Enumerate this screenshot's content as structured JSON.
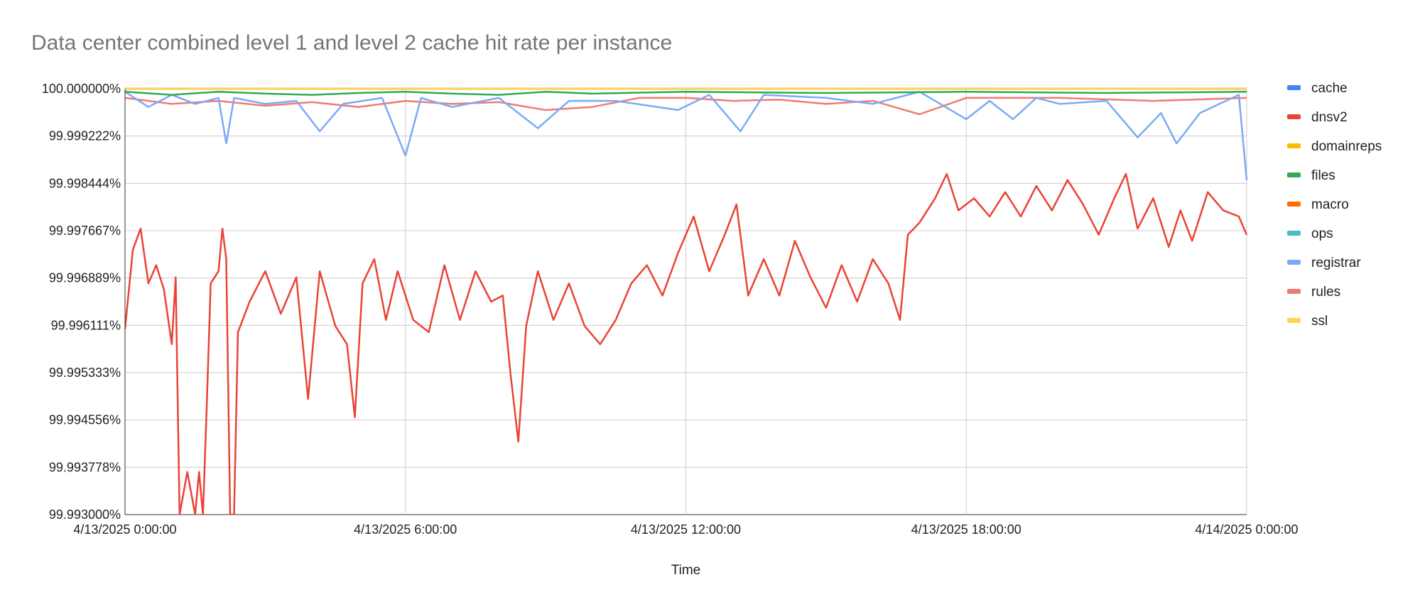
{
  "chart_data": {
    "type": "line",
    "title": "Data center combined level 1 and level 2 cache hit rate per instance",
    "xlabel": "Time",
    "ylabel": "",
    "x_range": [
      "4/13/2025 0:00:00",
      "4/14/2025 0:00:00"
    ],
    "x_ticks": [
      "4/13/2025 0:00:00",
      "4/13/2025 6:00:00",
      "4/13/2025 12:00:00",
      "4/13/2025 18:00:00",
      "4/14/2025 0:00:00"
    ],
    "y_ticks": [
      "100.000000%",
      "99.999222%",
      "99.998444%",
      "99.997667%",
      "99.996889%",
      "99.996111%",
      "99.995333%",
      "99.994556%",
      "99.993778%",
      "99.993000%"
    ],
    "ylim": [
      99.993,
      100.0
    ],
    "grid": true,
    "legend_position": "right",
    "series": [
      {
        "name": "cache",
        "color": "#4285F4",
        "points": [
          [
            "4/13/2025 0:00",
            100.0
          ],
          [
            "4/14/2025 0:00",
            100.0
          ]
        ]
      },
      {
        "name": "dnsv2",
        "color": "#EA4335",
        "points": [
          [
            "4/13/2025 0:00",
            99.99605
          ],
          [
            "4/13/2025 0:10",
            99.99735
          ],
          [
            "4/13/2025 0:20",
            99.9977
          ],
          [
            "4/13/2025 0:30",
            99.9968
          ],
          [
            "4/13/2025 0:40",
            99.9971
          ],
          [
            "4/13/2025 0:50",
            99.9967
          ],
          [
            "4/13/2025 1:00",
            99.9958
          ],
          [
            "4/13/2025 1:05",
            99.9969
          ],
          [
            "4/13/2025 1:10",
            99.993
          ],
          [
            "4/13/2025 1:20",
            99.9937
          ],
          [
            "4/13/2025 1:30",
            99.993
          ],
          [
            "4/13/2025 1:35",
            99.9937
          ],
          [
            "4/13/2025 1:40",
            99.993
          ],
          [
            "4/13/2025 1:45",
            99.9948
          ],
          [
            "4/13/2025 1:50",
            99.9968
          ],
          [
            "4/13/2025 2:00",
            99.997
          ],
          [
            "4/13/2025 2:05",
            99.9977
          ],
          [
            "4/13/2025 2:10",
            99.9972
          ],
          [
            "4/13/2025 2:15",
            99.993
          ],
          [
            "4/13/2025 2:20",
            99.993
          ],
          [
            "4/13/2025 2:25",
            99.996
          ],
          [
            "4/13/2025 2:40",
            99.9965
          ],
          [
            "4/13/2025 3:00",
            99.997
          ],
          [
            "4/13/2025 3:20",
            99.9963
          ],
          [
            "4/13/2025 3:40",
            99.9969
          ],
          [
            "4/13/2025 3:55",
            99.9949
          ],
          [
            "4/13/2025 4:10",
            99.997
          ],
          [
            "4/13/2025 4:30",
            99.9961
          ],
          [
            "4/13/2025 4:45",
            99.9958
          ],
          [
            "4/13/2025 4:55",
            99.9946
          ],
          [
            "4/13/2025 5:05",
            99.9968
          ],
          [
            "4/13/2025 5:20",
            99.9972
          ],
          [
            "4/13/2025 5:35",
            99.9962
          ],
          [
            "4/13/2025 5:50",
            99.997
          ],
          [
            "4/13/2025 6:10",
            99.9962
          ],
          [
            "4/13/2025 6:30",
            99.996
          ],
          [
            "4/13/2025 6:50",
            99.9971
          ],
          [
            "4/13/2025 7:10",
            99.9962
          ],
          [
            "4/13/2025 7:30",
            99.997
          ],
          [
            "4/13/2025 7:50",
            99.9965
          ],
          [
            "4/13/2025 8:05",
            99.9966
          ],
          [
            "4/13/2025 8:15",
            99.9953
          ],
          [
            "4/13/2025 8:25",
            99.9942
          ],
          [
            "4/13/2025 8:35",
            99.9961
          ],
          [
            "4/13/2025 8:50",
            99.997
          ],
          [
            "4/13/2025 9:10",
            99.9962
          ],
          [
            "4/13/2025 9:30",
            99.9968
          ],
          [
            "4/13/2025 9:50",
            99.9961
          ],
          [
            "4/13/2025 10:10",
            99.9958
          ],
          [
            "4/13/2025 10:30",
            99.9962
          ],
          [
            "4/13/2025 10:50",
            99.9968
          ],
          [
            "4/13/2025 11:10",
            99.9971
          ],
          [
            "4/13/2025 11:30",
            99.9966
          ],
          [
            "4/13/2025 11:50",
            99.9973
          ],
          [
            "4/13/2025 12:10",
            99.9979
          ],
          [
            "4/13/2025 12:30",
            99.997
          ],
          [
            "4/13/2025 12:50",
            99.9976
          ],
          [
            "4/13/2025 13:05",
            99.9981
          ],
          [
            "4/13/2025 13:20",
            99.9966
          ],
          [
            "4/13/2025 13:40",
            99.9972
          ],
          [
            "4/13/2025 14:00",
            99.9966
          ],
          [
            "4/13/2025 14:20",
            99.9975
          ],
          [
            "4/13/2025 14:40",
            99.9969
          ],
          [
            "4/13/2025 15:00",
            99.9964
          ],
          [
            "4/13/2025 15:20",
            99.9971
          ],
          [
            "4/13/2025 15:40",
            99.9965
          ],
          [
            "4/13/2025 16:00",
            99.9972
          ],
          [
            "4/13/2025 16:20",
            99.9968
          ],
          [
            "4/13/2025 16:35",
            99.9962
          ],
          [
            "4/13/2025 16:45",
            99.9976
          ],
          [
            "4/13/2025 17:00",
            99.9978
          ],
          [
            "4/13/2025 17:20",
            99.9982
          ],
          [
            "4/13/2025 17:35",
            99.9986
          ],
          [
            "4/13/2025 17:50",
            99.998
          ],
          [
            "4/13/2025 18:10",
            99.9982
          ],
          [
            "4/13/2025 18:30",
            99.9979
          ],
          [
            "4/13/2025 18:50",
            99.9983
          ],
          [
            "4/13/2025 19:10",
            99.9979
          ],
          [
            "4/13/2025 19:30",
            99.9984
          ],
          [
            "4/13/2025 19:50",
            99.998
          ],
          [
            "4/13/2025 20:10",
            99.9985
          ],
          [
            "4/13/2025 20:30",
            99.9981
          ],
          [
            "4/13/2025 20:50",
            99.9976
          ],
          [
            "4/13/2025 21:10",
            99.9982
          ],
          [
            "4/13/2025 21:25",
            99.9986
          ],
          [
            "4/13/2025 21:40",
            99.9977
          ],
          [
            "4/13/2025 22:00",
            99.9982
          ],
          [
            "4/13/2025 22:20",
            99.9974
          ],
          [
            "4/13/2025 22:35",
            99.998
          ],
          [
            "4/13/2025 22:50",
            99.9975
          ],
          [
            "4/13/2025 23:10",
            99.9983
          ],
          [
            "4/13/2025 23:30",
            99.998
          ],
          [
            "4/13/2025 23:50",
            99.9979
          ],
          [
            "4/14/2025 0:00",
            99.9976
          ]
        ]
      },
      {
        "name": "domainreps",
        "color": "#FBBC04",
        "points": [
          [
            "4/13/2025 0:00",
            100.0
          ],
          [
            "4/14/2025 0:00",
            100.0
          ]
        ]
      },
      {
        "name": "files",
        "color": "#34A853",
        "points": [
          [
            "4/13/2025 0:00",
            99.99995
          ],
          [
            "4/13/2025 1:00",
            99.9999
          ],
          [
            "4/13/2025 2:00",
            99.99995
          ],
          [
            "4/13/2025 3:00",
            99.99992
          ],
          [
            "4/13/2025 4:00",
            99.9999
          ],
          [
            "4/13/2025 5:00",
            99.99993
          ],
          [
            "4/13/2025 6:00",
            99.99995
          ],
          [
            "4/13/2025 7:00",
            99.99992
          ],
          [
            "4/13/2025 8:00",
            99.9999
          ],
          [
            "4/13/2025 9:00",
            99.99995
          ],
          [
            "4/13/2025 10:00",
            99.99992
          ],
          [
            "4/13/2025 12:00",
            99.99995
          ],
          [
            "4/13/2025 15:00",
            99.99993
          ],
          [
            "4/13/2025 18:00",
            99.99995
          ],
          [
            "4/13/2025 21:00",
            99.99993
          ],
          [
            "4/14/2025 0:00",
            99.99995
          ]
        ]
      },
      {
        "name": "macro",
        "color": "#FF6D01",
        "points": [
          [
            "4/13/2025 0:00",
            100.0
          ],
          [
            "4/14/2025 0:00",
            100.0
          ]
        ]
      },
      {
        "name": "ops",
        "color": "#46BDC6",
        "points": [
          [
            "4/13/2025 0:00",
            100.0
          ],
          [
            "4/14/2025 0:00",
            100.0
          ]
        ]
      },
      {
        "name": "registrar",
        "color": "#7BAAF7",
        "points": [
          [
            "4/13/2025 0:00",
            99.99995
          ],
          [
            "4/13/2025 0:30",
            99.9997
          ],
          [
            "4/13/2025 1:00",
            99.9999
          ],
          [
            "4/13/2025 1:30",
            99.99975
          ],
          [
            "4/13/2025 2:00",
            99.99985
          ],
          [
            "4/13/2025 2:10",
            99.9991
          ],
          [
            "4/13/2025 2:20",
            99.99985
          ],
          [
            "4/13/2025 3:00",
            99.99975
          ],
          [
            "4/13/2025 3:40",
            99.9998
          ],
          [
            "4/13/2025 4:10",
            99.9993
          ],
          [
            "4/13/2025 4:40",
            99.99975
          ],
          [
            "4/13/2025 5:30",
            99.99985
          ],
          [
            "4/13/2025 6:00",
            99.9989
          ],
          [
            "4/13/2025 6:20",
            99.99985
          ],
          [
            "4/13/2025 7:00",
            99.9997
          ],
          [
            "4/13/2025 8:00",
            99.99985
          ],
          [
            "4/13/2025 8:50",
            99.99935
          ],
          [
            "4/13/2025 9:30",
            99.9998
          ],
          [
            "4/13/2025 10:30",
            99.9998
          ],
          [
            "4/13/2025 11:50",
            99.99965
          ],
          [
            "4/13/2025 12:30",
            99.9999
          ],
          [
            "4/13/2025 13:10",
            99.9993
          ],
          [
            "4/13/2025 13:40",
            99.9999
          ],
          [
            "4/13/2025 15:00",
            99.99985
          ],
          [
            "4/13/2025 16:00",
            99.99975
          ],
          [
            "4/13/2025 17:00",
            99.99995
          ],
          [
            "4/13/2025 18:00",
            99.9995
          ],
          [
            "4/13/2025 18:30",
            99.9998
          ],
          [
            "4/13/2025 19:00",
            99.9995
          ],
          [
            "4/13/2025 19:30",
            99.99985
          ],
          [
            "4/13/2025 20:00",
            99.99975
          ],
          [
            "4/13/2025 21:00",
            99.9998
          ],
          [
            "4/13/2025 21:40",
            99.9992
          ],
          [
            "4/13/2025 22:10",
            99.9996
          ],
          [
            "4/13/2025 22:30",
            99.9991
          ],
          [
            "4/13/2025 23:00",
            99.9996
          ],
          [
            "4/13/2025 23:50",
            99.9999
          ],
          [
            "4/14/2025 0:00",
            99.9985
          ]
        ]
      },
      {
        "name": "rules",
        "color": "#F07B72",
        "points": [
          [
            "4/13/2025 0:00",
            99.99985
          ],
          [
            "4/13/2025 1:00",
            99.99975
          ],
          [
            "4/13/2025 2:00",
            99.9998
          ],
          [
            "4/13/2025 3:00",
            99.99972
          ],
          [
            "4/13/2025 4:00",
            99.99978
          ],
          [
            "4/13/2025 5:00",
            99.9997
          ],
          [
            "4/13/2025 6:00",
            99.9998
          ],
          [
            "4/13/2025 7:00",
            99.99975
          ],
          [
            "4/13/2025 8:00",
            99.99978
          ],
          [
            "4/13/2025 9:00",
            99.99965
          ],
          [
            "4/13/2025 10:00",
            99.9997
          ],
          [
            "4/13/2025 11:00",
            99.99985
          ],
          [
            "4/13/2025 12:00",
            99.99985
          ],
          [
            "4/13/2025 13:00",
            99.9998
          ],
          [
            "4/13/2025 14:00",
            99.99982
          ],
          [
            "4/13/2025 15:00",
            99.99975
          ],
          [
            "4/13/2025 16:00",
            99.9998
          ],
          [
            "4/13/2025 17:00",
            99.99958
          ],
          [
            "4/13/2025 18:00",
            99.99985
          ],
          [
            "4/13/2025 20:00",
            99.99985
          ],
          [
            "4/13/2025 22:00",
            99.9998
          ],
          [
            "4/14/2025 0:00",
            99.99985
          ]
        ]
      },
      {
        "name": "ssl",
        "color": "#FFD54F",
        "points": [
          [
            "4/13/2025 0:00",
            100.0
          ],
          [
            "4/14/2025 0:00",
            100.0
          ]
        ]
      }
    ]
  }
}
